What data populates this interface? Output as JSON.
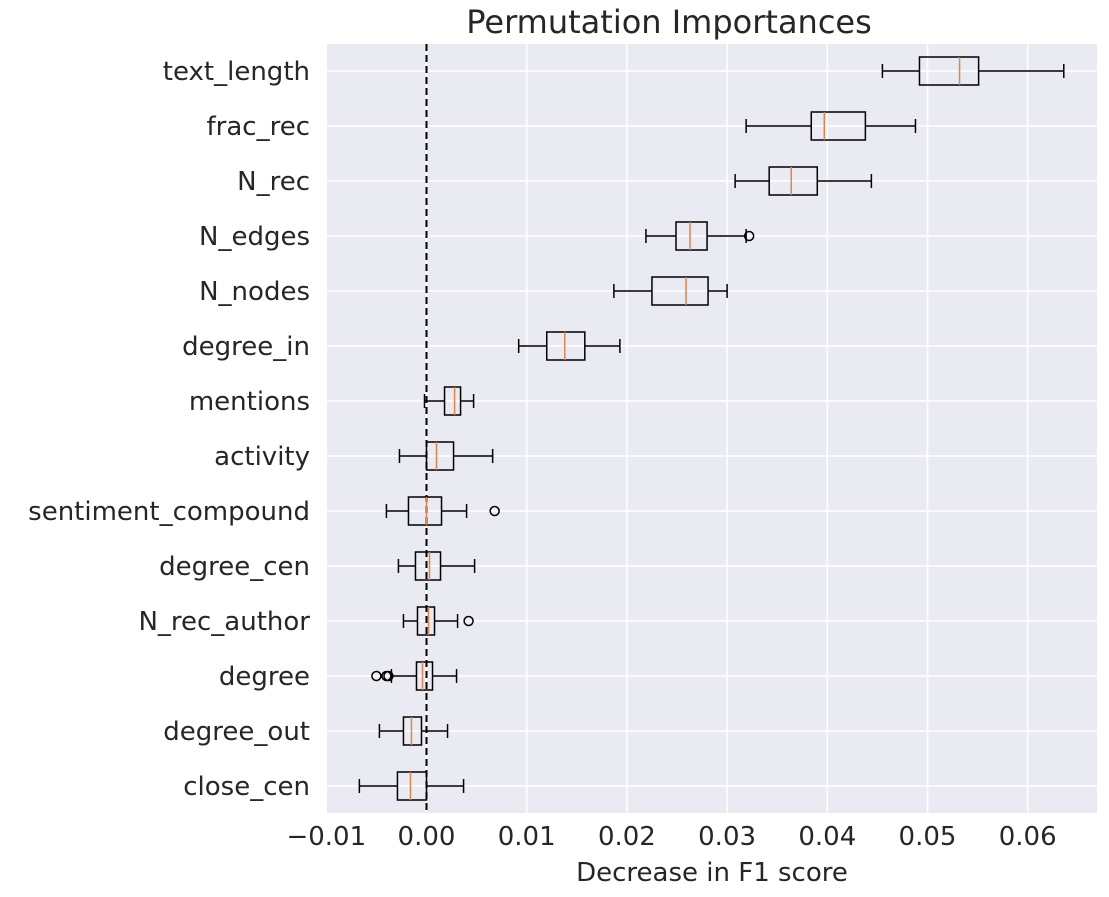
{
  "chart_data": {
    "type": "boxplot",
    "orientation": "horizontal",
    "title": "Permutation Importances",
    "xlabel": "Decrease in F1 score",
    "ylabel": "",
    "xlim": [
      -0.01,
      0.067
    ],
    "xticks": [
      -0.01,
      0.0,
      0.01,
      0.02,
      0.03,
      0.04,
      0.05,
      0.06
    ],
    "xtick_labels": [
      "−0.01",
      "0.00",
      "0.01",
      "0.02",
      "0.03",
      "0.04",
      "0.05",
      "0.06"
    ],
    "grid": true,
    "reference_line": {
      "x": 0.0,
      "style": "dashed",
      "color": "#000000"
    },
    "colors": {
      "background": "#eaeaf2",
      "grid": "#ffffff",
      "box": "#000000",
      "median": "#dd8452"
    },
    "features": [
      {
        "name": "text_length",
        "whisker_low": 0.0455,
        "q1": 0.0492,
        "median": 0.0532,
        "q3": 0.0551,
        "whisker_high": 0.0636,
        "outliers": []
      },
      {
        "name": "frac_rec",
        "whisker_low": 0.0319,
        "q1": 0.0384,
        "median": 0.0397,
        "q3": 0.0438,
        "whisker_high": 0.0488,
        "outliers": []
      },
      {
        "name": "N_rec",
        "whisker_low": 0.0308,
        "q1": 0.0342,
        "median": 0.0364,
        "q3": 0.039,
        "whisker_high": 0.0444,
        "outliers": []
      },
      {
        "name": "N_edges",
        "whisker_low": 0.0219,
        "q1": 0.0249,
        "median": 0.0263,
        "q3": 0.028,
        "whisker_high": 0.0319,
        "outliers": [
          0.0322
        ]
      },
      {
        "name": "N_nodes",
        "whisker_low": 0.0187,
        "q1": 0.0225,
        "median": 0.0259,
        "q3": 0.0281,
        "whisker_high": 0.03,
        "outliers": []
      },
      {
        "name": "degree_in",
        "whisker_low": 0.0092,
        "q1": 0.012,
        "median": 0.0138,
        "q3": 0.0158,
        "whisker_high": 0.0193,
        "outliers": []
      },
      {
        "name": "mentions",
        "whisker_low": -0.0002,
        "q1": 0.0018,
        "median": 0.0028,
        "q3": 0.0034,
        "whisker_high": 0.0047,
        "outliers": []
      },
      {
        "name": "activity",
        "whisker_low": -0.0027,
        "q1": 0.0,
        "median": 0.001,
        "q3": 0.0027,
        "whisker_high": 0.0066,
        "outliers": []
      },
      {
        "name": "sentiment_compound",
        "whisker_low": -0.004,
        "q1": -0.0018,
        "median": 0.0,
        "q3": 0.0015,
        "whisker_high": 0.004,
        "outliers": [
          0.0068
        ]
      },
      {
        "name": "degree_cen",
        "whisker_low": -0.0028,
        "q1": -0.0011,
        "median": 0.0003,
        "q3": 0.0014,
        "whisker_high": 0.0048,
        "outliers": []
      },
      {
        "name": "N_rec_author",
        "whisker_low": -0.0023,
        "q1": -0.0009,
        "median": 0.0002,
        "q3": 0.0008,
        "whisker_high": 0.0031,
        "outliers": [
          0.0042
        ]
      },
      {
        "name": "degree",
        "whisker_low": -0.0035,
        "q1": -0.001,
        "median": -0.0004,
        "q3": 0.0006,
        "whisker_high": 0.003,
        "outliers": [
          -0.005,
          -0.004,
          -0.0038
        ]
      },
      {
        "name": "degree_out",
        "whisker_low": -0.0047,
        "q1": -0.0023,
        "median": -0.0015,
        "q3": -0.0005,
        "whisker_high": 0.0021,
        "outliers": []
      },
      {
        "name": "close_cen",
        "whisker_low": -0.0067,
        "q1": -0.0029,
        "median": -0.0016,
        "q3": 0.0,
        "whisker_high": 0.0037,
        "outliers": []
      }
    ]
  }
}
